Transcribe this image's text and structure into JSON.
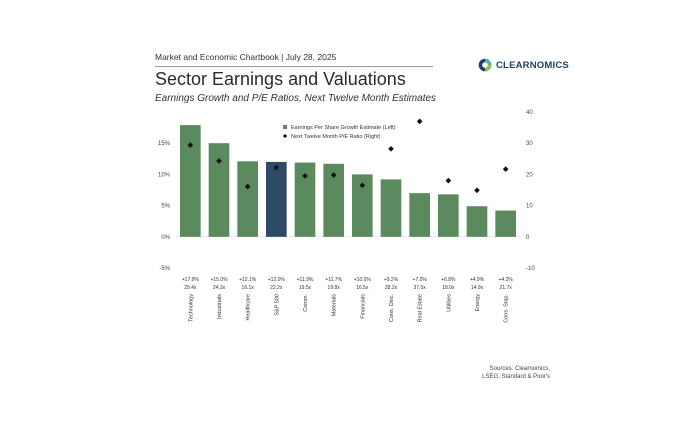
{
  "header": {
    "chartbook": "Market and Economic Chartbook | July 28, 2025",
    "logo_text": "CLEARNOMICS",
    "logo_icon": "clearnomics-logo-icon"
  },
  "chart_data": {
    "type": "bar",
    "title": "Sector Earnings and Valuations",
    "subtitle": "Earnings Growth and P/E Ratios, Next Twelve Month Estimates",
    "categories": [
      "Technology",
      "Industrials",
      "Healthcare",
      "S&P 500",
      "Comm.",
      "Materials",
      "Financials",
      "Cons. Disc.",
      "Real Estate",
      "Utilities",
      "Energy",
      "Cons. Stap."
    ],
    "series": [
      {
        "name": "Earnings Per Share Growth Estimate (Left)",
        "type": "bar",
        "axis": "left",
        "values": [
          17.9,
          15.0,
          12.1,
          12.0,
          11.9,
          11.7,
          10.0,
          9.2,
          7.0,
          6.8,
          4.9,
          4.2
        ],
        "labels": [
          "+17.9%",
          "+15.0%",
          "+12.1%",
          "+12.0%",
          "+11.9%",
          "+11.7%",
          "+10.0%",
          "+9.2%",
          "+7.0%",
          "+6.8%",
          "+4.9%",
          "+4.2%"
        ]
      },
      {
        "name": "Next Twelve Month P/E Ratio (Right)",
        "type": "scatter",
        "axis": "right",
        "values": [
          29.4,
          24.3,
          16.1,
          22.2,
          19.5,
          19.8,
          16.5,
          28.2,
          37.0,
          18.0,
          14.9,
          21.7
        ],
        "labels": [
          "29.4x",
          "24.3x",
          "16.1x",
          "22.2x",
          "19.5x",
          "19.8x",
          "16.5x",
          "28.2x",
          "37.0x",
          "18.0x",
          "14.9x",
          "21.7x"
        ]
      }
    ],
    "highlight_category": "S&P 500",
    "ylim_left": [
      -5,
      20
    ],
    "yticks_left": [
      "-5%",
      "0%",
      "5%",
      "10%",
      "15%"
    ],
    "ylim_right": [
      -10,
      40
    ],
    "yticks_right": [
      "-10",
      "0",
      "10",
      "20",
      "30",
      "40"
    ],
    "legend_position": "top-center",
    "grid": false,
    "colors": {
      "bar": "#5a8a5e",
      "highlight": "#2e4a66",
      "marker": "#111111"
    }
  },
  "sources": {
    "line1": "Sources: Clearnomics,",
    "line2": "LSEG, Standard & Poor's"
  }
}
